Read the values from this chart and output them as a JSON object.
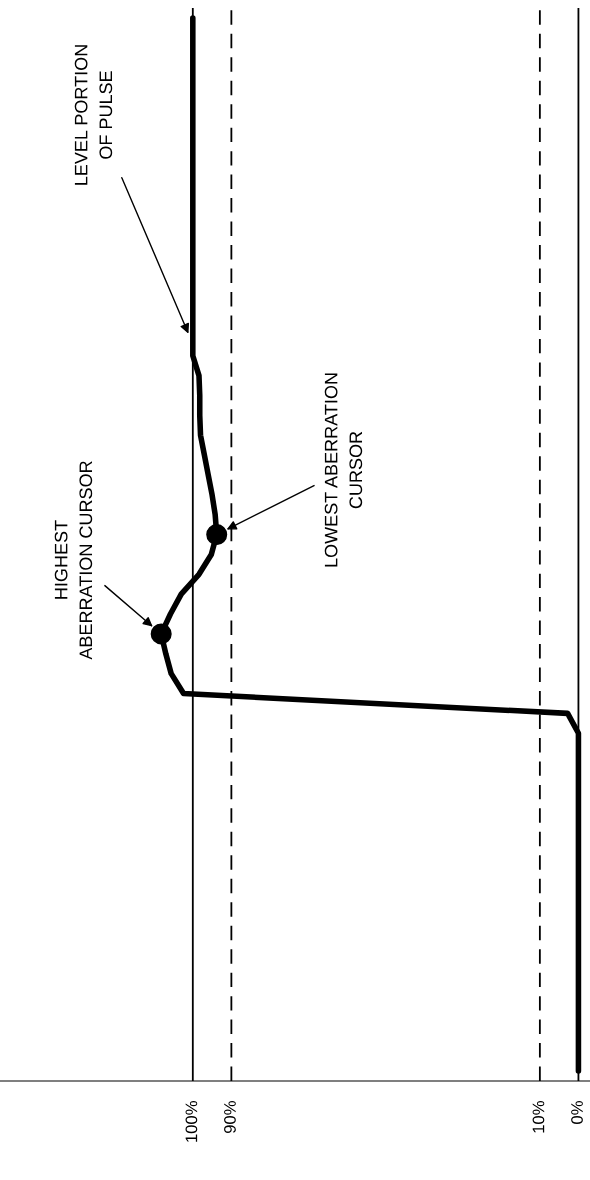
{
  "chart_data": {
    "type": "line",
    "orientation": "horizontal",
    "categories": [
      null,
      null,
      null,
      null,
      null,
      null,
      null,
      null,
      null,
      null,
      null,
      null,
      null,
      null,
      null,
      null,
      null,
      null,
      null,
      null,
      null,
      null,
      null,
      null,
      null,
      null,
      null,
      null,
      null,
      null,
      null,
      null,
      null,
      null,
      null,
      null,
      null,
      null,
      null,
      null,
      null,
      null,
      null,
      null,
      null,
      null,
      null,
      null,
      null,
      null,
      null,
      null,
      null,
      null
    ],
    "series": [
      {
        "color": "#000000",
        "marker": "none",
        "line_style": "solid",
        "values": [
          100,
          100,
          100,
          100,
          100,
          100,
          100,
          100,
          100,
          100,
          100,
          100,
          100,
          100,
          100,
          100,
          100,
          100,
          98.4,
          98.2,
          98.2,
          98.0,
          97.0,
          96.0,
          95.0,
          94.2,
          93.8,
          95.2,
          98.4,
          103.0,
          105.8,
          108.2,
          107.0,
          105.6,
          102.4,
          2.8,
          0,
          0,
          0,
          0,
          0,
          0,
          0,
          0,
          0,
          0,
          0,
          0,
          0,
          0,
          0,
          0,
          0,
          0
        ]
      },
      {
        "type": "scatter",
        "color": "#000000",
        "marker": "circle",
        "values": [
          null,
          null,
          null,
          null,
          null,
          null,
          null,
          null,
          null,
          null,
          null,
          null,
          null,
          null,
          null,
          null,
          null,
          null,
          null,
          null,
          null,
          null,
          null,
          null,
          null,
          null,
          93.8,
          null,
          null,
          null,
          null,
          108.2,
          null,
          null,
          null,
          null,
          null,
          null,
          null,
          null,
          null,
          null,
          null,
          null,
          null,
          null,
          null,
          null,
          null,
          null,
          null,
          null,
          null,
          null
        ]
      }
    ],
    "xlim": [
      150,
      -3
    ],
    "xticks": [
      {
        "value": 100,
        "label": "100%"
      },
      {
        "value": 90,
        "label": "90%"
      },
      {
        "value": 10,
        "label": "10%"
      },
      {
        "value": 0,
        "label": "0%"
      }
    ],
    "ref_lines": [
      {
        "axis": "x",
        "value": 100,
        "color": "#000000",
        "line_style": "solid"
      },
      {
        "axis": "x",
        "value": 90,
        "color": "#000000",
        "line_style": "dashed"
      },
      {
        "axis": "x",
        "value": 10,
        "color": "#000000",
        "line_style": "dashed"
      },
      {
        "axis": "x",
        "value": 0,
        "color": "#000000",
        "line_style": "solid"
      }
    ],
    "annotations": [
      "LOWEST ABERRATION\nCURSOR",
      "HIGHEST\nABERRATION CURSOR",
      "LEVEL PORTION\nOF PULSE"
    ],
    "grid": false,
    "legend": false
  }
}
